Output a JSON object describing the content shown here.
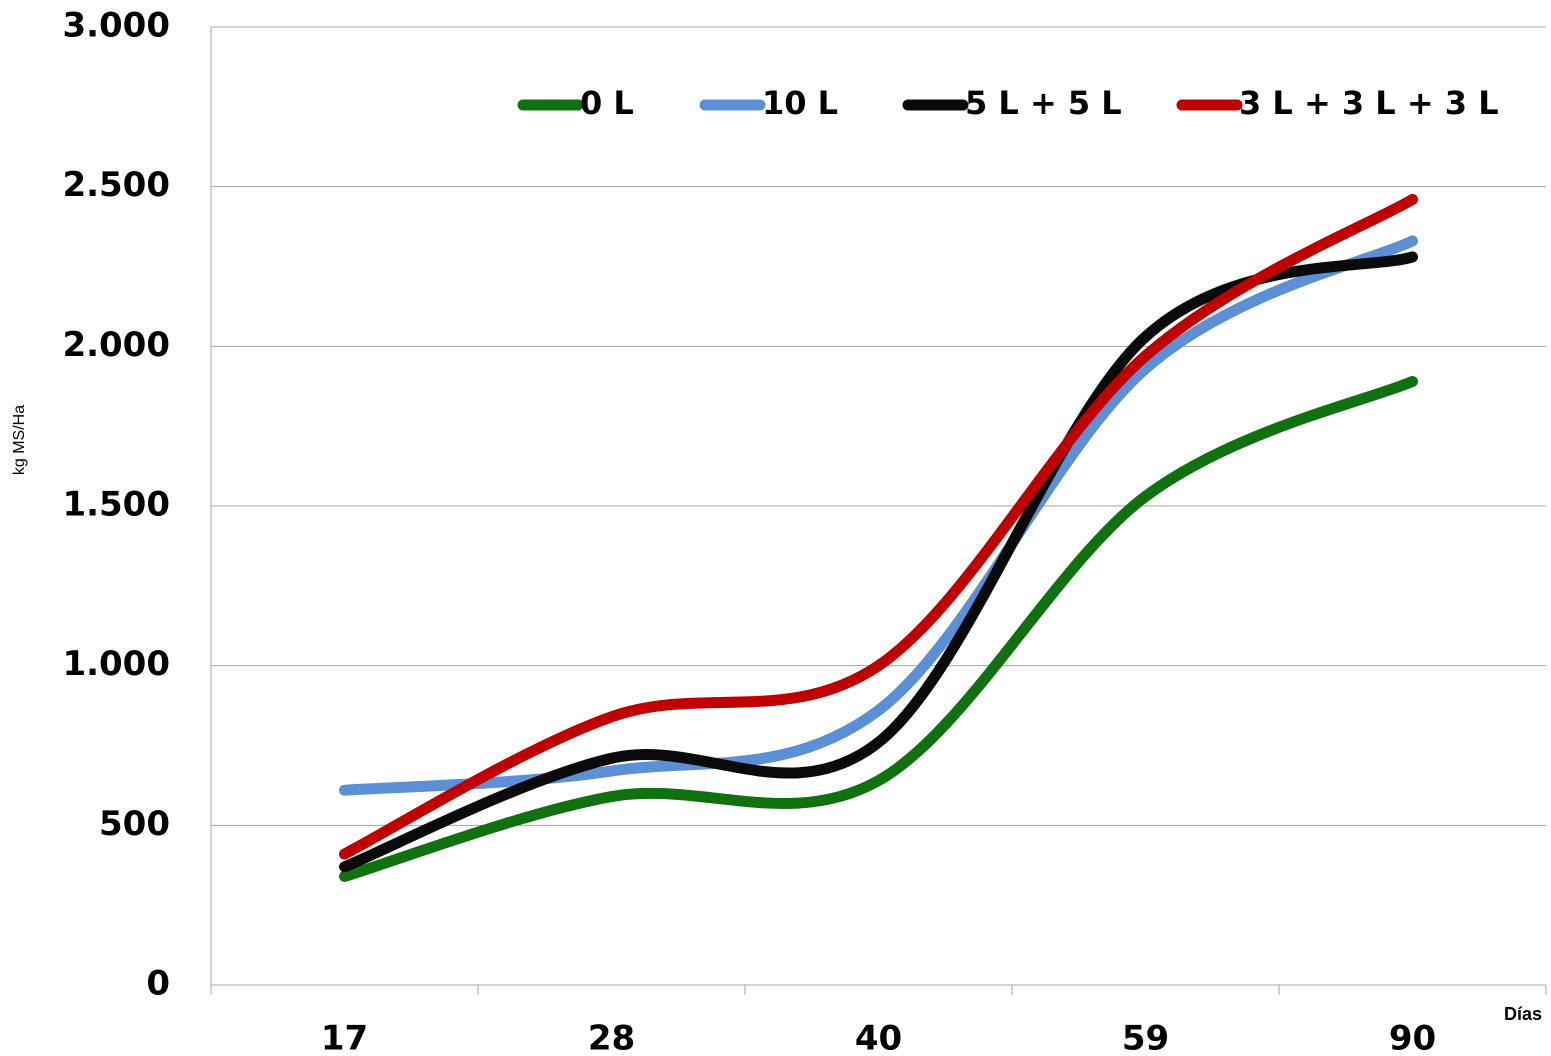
{
  "chart_data": {
    "type": "line",
    "smooth": true,
    "y_label": "kg MS/Ha",
    "x_label": "Días",
    "categories": [
      "17",
      "28",
      "40",
      "59",
      "90"
    ],
    "series": [
      {
        "name": "0 L",
        "color": "#10720f",
        "values": [
          340,
          590,
          640,
          1530,
          1890
        ]
      },
      {
        "name": "10 L",
        "color": "#5b8fd6",
        "values": [
          610,
          670,
          860,
          1930,
          2330
        ]
      },
      {
        "name": "5 L + 5 L",
        "color": "#0a0a0a",
        "values": [
          370,
          710,
          760,
          2030,
          2280
        ]
      },
      {
        "name": "3 L + 3 L + 3 L",
        "color": "#c00000",
        "values": [
          410,
          840,
          1000,
          1970,
          2460
        ]
      }
    ],
    "ylim": [
      0,
      3000
    ],
    "yticks": [
      0,
      500,
      {
        "value": 1000,
        "label": "1.000"
      },
      {
        "value": 1500,
        "label": "1.500"
      },
      {
        "value": 2000,
        "label": "2.000"
      },
      {
        "value": 2500,
        "label": "2.500"
      },
      {
        "value": 3000,
        "label": "3.000"
      }
    ],
    "grid": true,
    "legend": "top"
  }
}
